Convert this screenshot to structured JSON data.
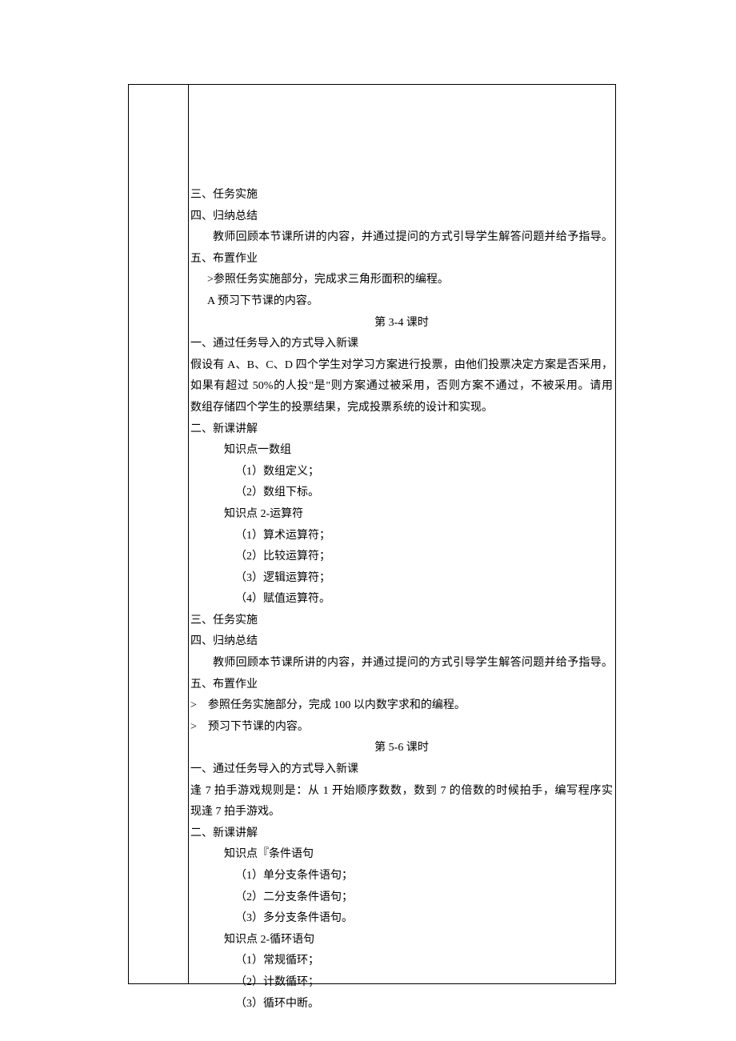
{
  "section3_4": {
    "h_task": "三、任务实施",
    "h_summary": "四、归纳总结",
    "summary_text": "教师回顾本节课所讲的内容，并通过提问的方式引导学生解答问题并给予指导。",
    "h_homework": "五、布置作业",
    "hw1": ">参照任务实施部分，完成求三角形面积的编程。",
    "hw2": "A 预习下节课的内容。",
    "period_title": "第 3-4 课时",
    "h_intro": "一、通过任务导入的方式导入新课",
    "intro_l1": "假设有 A、B、C、D 四个学生对学习方案进行投票，由他们投票决定方案是否采用，",
    "intro_l2": "如果有超过 50%的人投\"是\"则方案通过被采用，否则方案不通过，不被采用。请用",
    "intro_l3": "数组存储四个学生的投票结果，完成投票系统的设计和实现。",
    "h_lecture": "二、新课讲解",
    "kp1_title": "知识点一数组",
    "kp1_i1": "（1）数组定义；",
    "kp1_i2": "（2）数组下标。",
    "kp2_title": "知识点 2-运算符",
    "kp2_i1": "（1）算术运算符；",
    "kp2_i2": "（2）比较运算符；",
    "kp2_i3": "（3）逻辑运算符；",
    "kp2_i4": "（4）赋值运算符。"
  },
  "section5_6": {
    "h_task": "三、任务实施",
    "h_summary": "四、归纳总结",
    "summary_text": "教师回顾本节课所讲的内容，并通过提问的方式引导学生解答问题并给予指导。",
    "h_homework": "五、布置作业",
    "hw1_prefix": ">",
    "hw1": "参照任务实施部分，完成 100 以内数字求和的编程。",
    "hw2_prefix": ">",
    "hw2": "预习下节课的内容。",
    "period_title": "第 5-6 课时",
    "h_intro": "一、通过任务导入的方式导入新课",
    "intro_l1": "逢 7 拍手游戏规则是：从 1 开始顺序数数，数到 7 的倍数的时候拍手，编写程序实",
    "intro_l2": "现逢 7 拍手游戏。",
    "h_lecture": "二、新课讲解",
    "kp1_title": "知识点『条件语句",
    "kp1_i1": "（1）单分支条件语句；",
    "kp1_i2": "（2）二分支条件语句；",
    "kp1_i3": "（3）多分支条件语句。",
    "kp2_title": "知识点 2-循环语句",
    "kp2_i1": "（1）常规循环；",
    "kp2_i2": "（2）计数循环；",
    "kp2_i3": "（3）循环中断。"
  }
}
